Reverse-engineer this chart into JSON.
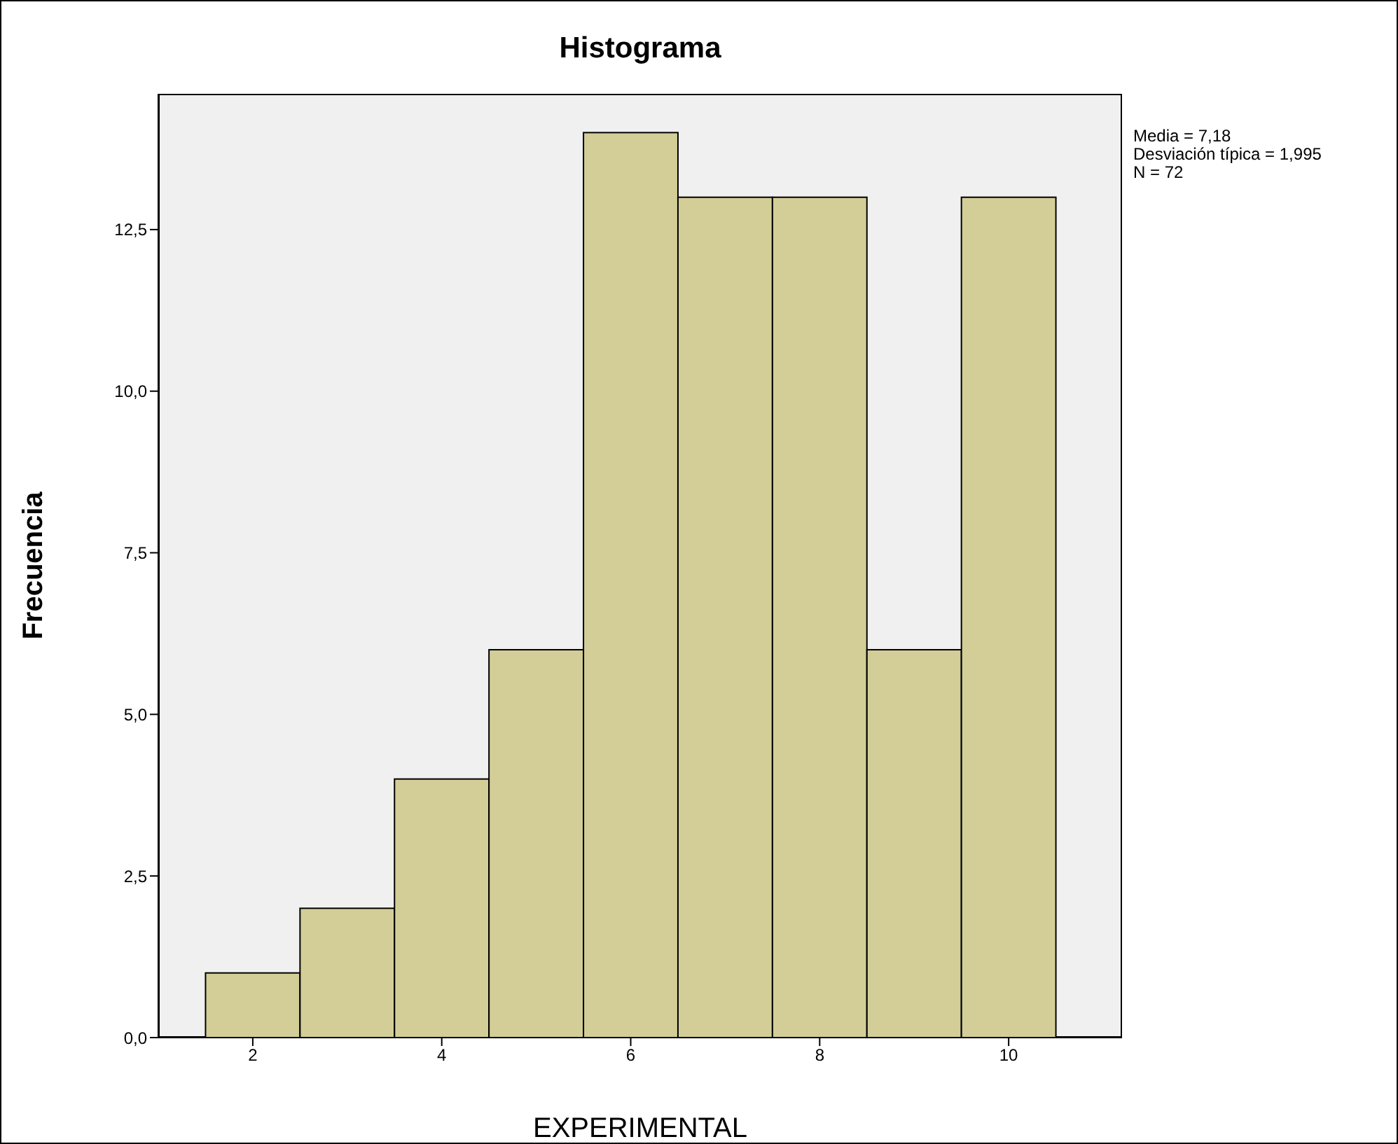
{
  "chart_data": {
    "type": "histogram",
    "title": "Histograma",
    "xlabel": "EXPERIMENTAL",
    "ylabel": "Frecuencia",
    "bins": [
      1.5,
      2.5,
      3.5,
      4.5,
      5.5,
      6.5,
      7.5,
      8.5,
      9.5,
      10.5
    ],
    "values": [
      1,
      2,
      4,
      6,
      14,
      13,
      13,
      6,
      13
    ],
    "color": "#d3ce97",
    "xlim": [
      1.0,
      11.2
    ],
    "xticks": [
      2,
      4,
      6,
      8,
      10
    ],
    "ylim": [
      0,
      14.6
    ],
    "yticks": [
      {
        "value": 0,
        "label": "0,0"
      },
      {
        "value": 2.5,
        "label": "2,5"
      },
      {
        "value": 5,
        "label": "5,0"
      },
      {
        "value": 7.5,
        "label": "7,5"
      },
      {
        "value": 10,
        "label": "10,0"
      },
      {
        "value": 12.5,
        "label": "12,5"
      }
    ],
    "annotations": [
      "Media = 7,18",
      "Desviación típica = 1,995",
      "N = 72"
    ]
  }
}
